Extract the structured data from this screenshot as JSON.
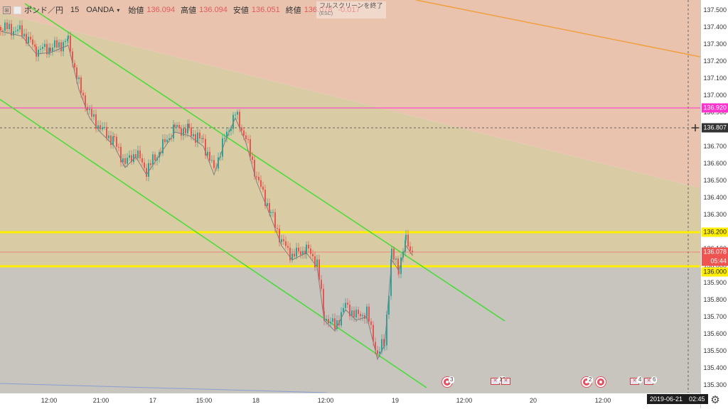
{
  "legend": {
    "symbol": "ポンド／円",
    "interval": "15",
    "exchange": "OANDA",
    "open_label": "始値",
    "open": "136.094",
    "high_label": "高値",
    "high": "136.094",
    "low_label": "安値",
    "low": "136.051",
    "close_label": "終値",
    "close": "136.078",
    "change": "-0.017"
  },
  "fullscreen_tip": {
    "text": "フルスクリーンを終了",
    "key": "(ESC)"
  },
  "price_axis": {
    "ticks": [
      "137.500",
      "137.400",
      "137.300",
      "137.200",
      "137.100",
      "137.000",
      "136.900",
      "136.800",
      "136.700",
      "136.600",
      "136.500",
      "136.400",
      "136.300",
      "136.200",
      "136.100",
      "136.000",
      "135.900",
      "135.800",
      "135.700",
      "135.600",
      "135.500",
      "135.400",
      "135.300"
    ],
    "labels": {
      "magenta_line": "136.920",
      "crosshair": "136.807",
      "upper_yellow": "136.200",
      "last_price": "136.078",
      "countdown": "05:44",
      "lower_yellow": "136.000"
    }
  },
  "time_axis": {
    "ticks": [
      "12:00",
      "21:00",
      "17",
      "15:00",
      "18",
      "12:00",
      "19",
      "12:00",
      "20",
      "12:00"
    ],
    "crosshair_date": "2019-06-21　02:45"
  },
  "events": {
    "badges": [
      "3",
      "16",
      "2",
      "4",
      "6"
    ]
  },
  "colors": {
    "upper_zone": "#e9c2ad",
    "middle_zone": "#d8c89f",
    "lower_zone": "#c9c4bd",
    "channel": "#44dd33",
    "yellow_levels": "#ffee00",
    "magenta_level": "#ff33cc",
    "orange_trend": "#f0a040",
    "candle_up": "#26a69a",
    "candle_down": "#ef5350",
    "moving_average": "#808080"
  },
  "icons": {
    "settings": "gear-icon",
    "crosshair": "crosshair-plus-icon",
    "economic_event": "event-circle-icon"
  }
}
